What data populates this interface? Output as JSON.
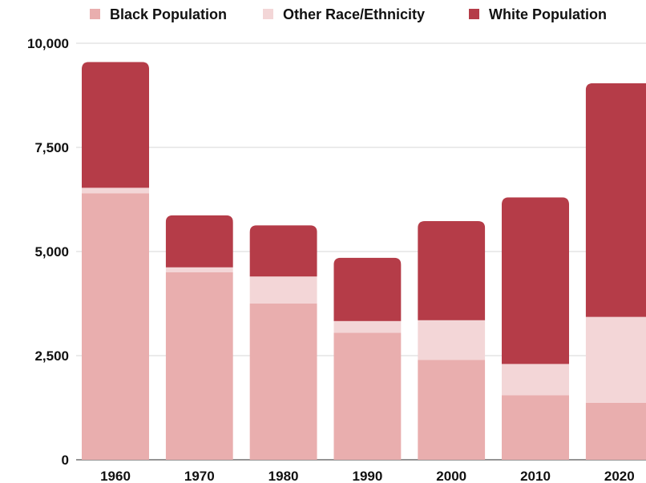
{
  "chart_data": {
    "type": "bar",
    "stacked": true,
    "title": "",
    "xlabel": "",
    "ylabel": "",
    "categories": [
      "1960",
      "1970",
      "1980",
      "1990",
      "2000",
      "2010",
      "2020"
    ],
    "series": [
      {
        "name": "Black Population",
        "color": "#e9aeae",
        "values": [
          6400,
          4500,
          3750,
          3050,
          2400,
          1550,
          1370
        ]
      },
      {
        "name": "Other Race/Ethnicity",
        "color": "#f3d6d7",
        "values": [
          130,
          120,
          650,
          280,
          950,
          750,
          2060
        ]
      },
      {
        "name": "White Population",
        "color": "#b53c48",
        "values": [
          3020,
          1250,
          1230,
          1520,
          2380,
          4000,
          5610
        ]
      }
    ],
    "ylim": [
      0,
      10000
    ],
    "yticks": [
      0,
      2500,
      5000,
      7500,
      10000
    ],
    "ytick_labels": [
      "0",
      "2,500",
      "5,000",
      "7,500",
      "10,000"
    ],
    "grid": true,
    "legend_position": "top"
  }
}
